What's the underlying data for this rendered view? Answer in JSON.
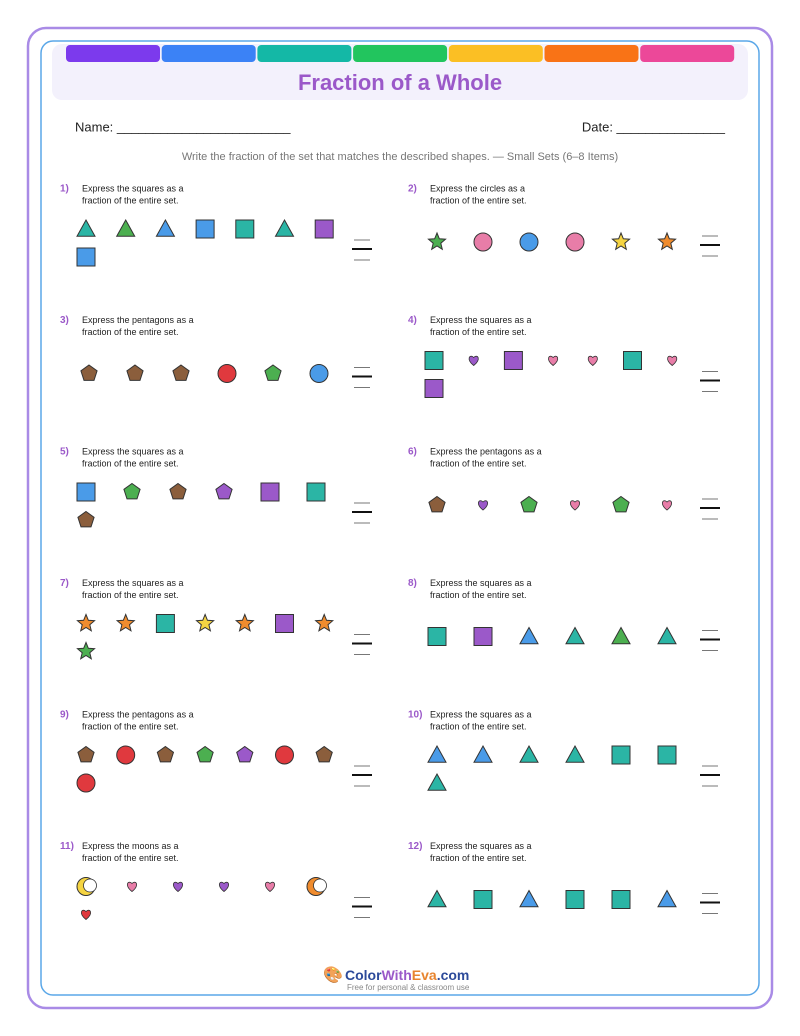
{
  "header": {
    "title": "Fraction of a Whole"
  },
  "fields": {
    "name": "Name: ________________________",
    "date": "Date: _______________"
  },
  "instructions": "Write the fraction of the set that matches the described shapes. — Small Sets (6–8 Items)",
  "problems": [
    {
      "number": "1)",
      "lines": [
        "Express the squares as a",
        "fraction of the entire set."
      ]
    },
    {
      "number": "2)",
      "lines": [
        "Express the circles as a",
        "fraction of the entire set."
      ]
    },
    {
      "number": "3)",
      "lines": [
        "Express the pentagons as a",
        "fraction of the entire set."
      ]
    },
    {
      "number": "4)",
      "lines": [
        "Express the squares as a",
        "fraction of the entire set."
      ]
    },
    {
      "number": "5)",
      "lines": [
        "Express the squares as a",
        "fraction of the entire set."
      ]
    },
    {
      "number": "6)",
      "lines": [
        "Express the pentagons as a",
        "fraction of the entire set."
      ]
    },
    {
      "number": "7)",
      "lines": [
        "Express the squares as a",
        "fraction of the entire set."
      ]
    },
    {
      "number": "8)",
      "lines": [
        "Express the squares as a",
        "fraction of the entire set."
      ]
    },
    {
      "number": "9)",
      "lines": [
        "Express the pentagons as a",
        "fraction of the entire set."
      ]
    },
    {
      "number": "10)",
      "lines": [
        "Express the squares as a",
        "fraction of the entire set."
      ]
    },
    {
      "number": "11)",
      "lines": [
        "Express the moons as a",
        "fraction of the entire set."
      ]
    },
    {
      "number": "12)",
      "lines": [
        "Express the squares as a",
        "fraction of the entire set."
      ]
    }
  ],
  "footer": {
    "brand": [
      "Color",
      "With",
      "Eva",
      ".com"
    ],
    "note": "Free for personal & classroom use"
  }
}
